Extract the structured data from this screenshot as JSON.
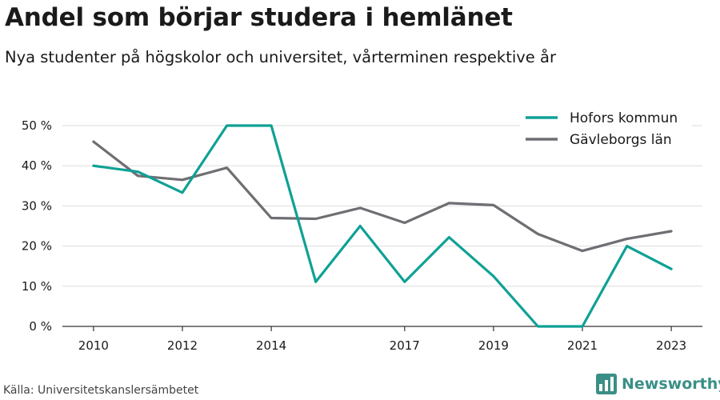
{
  "header": {
    "title": "Andel som börjar studera i hemlänet",
    "subtitle": "Nya studenter på högskolor och universitet, vårterminen respektive år"
  },
  "footer": {
    "source": "Källa: Universitetskanslersämbetet",
    "brand": "Newsworthy",
    "brand_icon": "bar-chart-logo-icon"
  },
  "colors": {
    "hofors": "#0fa195",
    "gavleborg": "#6e6e73",
    "grid": "#dddddd",
    "brand": "#3a8f86"
  },
  "chart_data": {
    "type": "line",
    "title": "Andel som börjar studera i hemlänet",
    "subtitle": "Nya studenter på högskolor och universitet, vårterminen respektive år",
    "xlabel": "",
    "ylabel": "",
    "x": [
      2010,
      2011,
      2012,
      2013,
      2014,
      2015,
      2016,
      2017,
      2018,
      2019,
      2020,
      2021,
      2022,
      2023
    ],
    "xticks": [
      2010,
      2012,
      2014,
      2017,
      2019,
      2021,
      2023
    ],
    "xlim": [
      2009.3,
      2023.7
    ],
    "ylim": [
      0,
      50
    ],
    "yticks": [
      0,
      10,
      20,
      30,
      40,
      50
    ],
    "ytick_labels": [
      "0 %",
      "10 %",
      "20 %",
      "30 %",
      "40 %",
      "50 %"
    ],
    "grid": true,
    "legend_position": "top-right",
    "series": [
      {
        "name": "Hofors kommun",
        "color": "#0fa195",
        "values": [
          40,
          38.5,
          33.3,
          50,
          50,
          11.1,
          25,
          11.1,
          22.2,
          12.5,
          0,
          0,
          20,
          14.3
        ]
      },
      {
        "name": "Gävleborgs län",
        "color": "#6e6e73",
        "values": [
          46,
          37.5,
          36.5,
          39.5,
          27,
          26.8,
          29.5,
          25.8,
          30.7,
          30.2,
          23,
          18.8,
          21.8,
          23.7
        ]
      }
    ]
  }
}
